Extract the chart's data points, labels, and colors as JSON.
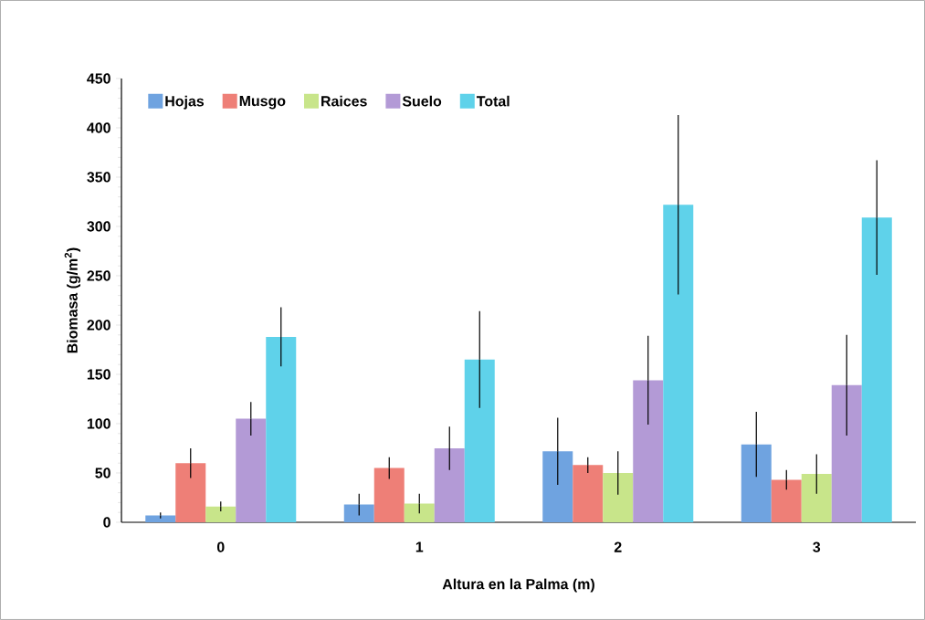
{
  "chart_data": {
    "type": "bar",
    "xlabel": "Altura en la Palma (m)",
    "ylabel": "Biomasa (g/m$^{2}$)",
    "categories": [
      "0",
      "1",
      "2",
      "3"
    ],
    "ylim": [
      0,
      450
    ],
    "yticks": [
      0,
      50,
      100,
      150,
      200,
      250,
      300,
      350,
      400,
      450
    ],
    "legend": "top left",
    "series": [
      {
        "name": "Hojas",
        "color": "#6fa3e0",
        "values": [
          7,
          18,
          72,
          79
        ],
        "errors": [
          3,
          11,
          34,
          33
        ]
      },
      {
        "name": "Musgo",
        "color": "#ee7f77",
        "values": [
          60,
          55,
          58,
          43
        ],
        "errors": [
          15,
          11,
          8,
          10
        ]
      },
      {
        "name": "Raices",
        "color": "#c8e58a",
        "values": [
          16,
          19,
          50,
          49
        ],
        "errors": [
          5,
          10,
          22,
          20
        ]
      },
      {
        "name": "Suelo",
        "color": "#b39ad6",
        "values": [
          105,
          75,
          144,
          139
        ],
        "errors": [
          17,
          22,
          45,
          51
        ]
      },
      {
        "name": "Total",
        "color": "#5fd2ea",
        "values": [
          188,
          165,
          322,
          309
        ],
        "errors": [
          30,
          49,
          91,
          58
        ]
      }
    ]
  }
}
